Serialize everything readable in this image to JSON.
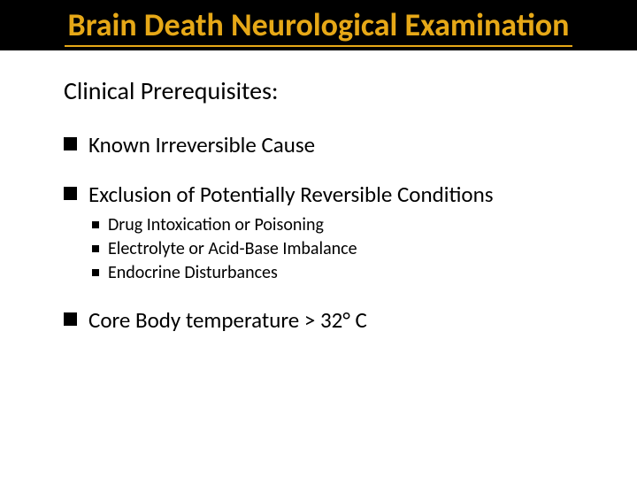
{
  "colors": {
    "title_bg": "#000000",
    "title_fg": "#e6a817",
    "body_bg": "#ffffff",
    "text": "#000000",
    "bullet": "#000000"
  },
  "typography": {
    "title_fontsize": 36,
    "title_weight": 600,
    "subtitle_fontsize": 28,
    "level1_fontsize": 25,
    "level2_fontsize": 20,
    "font_family": "Calibri"
  },
  "title": "Brain Death Neurological Examination",
  "subtitle": "Clinical Prerequisites:",
  "items": [
    {
      "label": "Known Irreversible Cause",
      "children": []
    },
    {
      "label": "Exclusion of Potentially Reversible Conditions",
      "children": [
        {
          "label": "Drug Intoxication or Poisoning"
        },
        {
          "label": "Electrolyte or Acid-Base Imbalance"
        },
        {
          "label": "Endocrine Disturbances"
        }
      ]
    },
    {
      "label": "Core Body temperature > 32° C",
      "children": []
    }
  ]
}
